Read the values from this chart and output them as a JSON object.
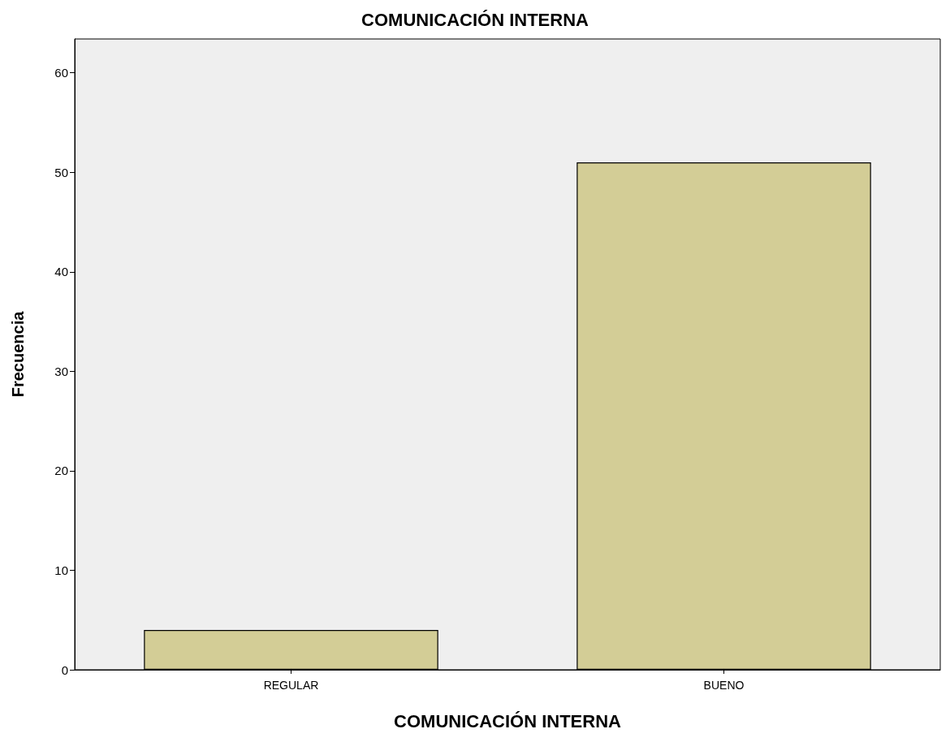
{
  "chart_data": {
    "type": "bar",
    "title": "COMUNICACIÓN INTERNA",
    "xlabel": "COMUNICACIÓN INTERNA",
    "ylabel": "Frecuencia",
    "categories": [
      "REGULAR",
      "BUENO"
    ],
    "values": [
      4,
      51
    ],
    "color": "#d3cd96",
    "ylim": [
      0,
      63.4
    ],
    "yticks": [
      0,
      10,
      20,
      30,
      40,
      50,
      60
    ],
    "grid": false
  }
}
